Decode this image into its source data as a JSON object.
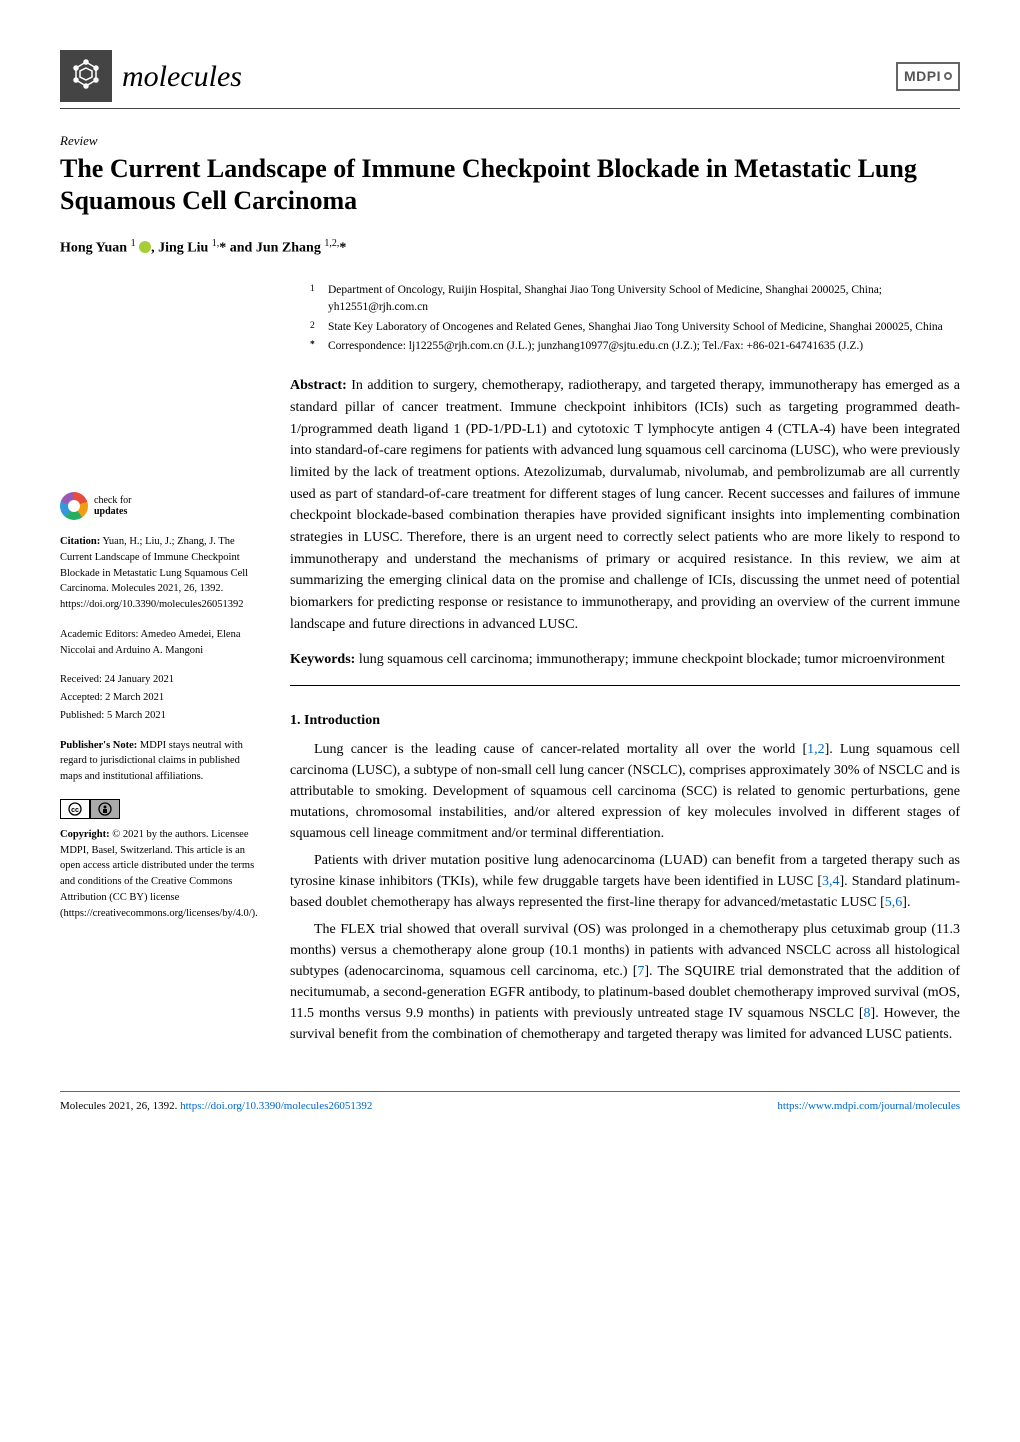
{
  "header": {
    "journal": "molecules",
    "publisher": "MDPI"
  },
  "article": {
    "type": "Review",
    "title": "The Current Landscape of Immune Checkpoint Blockade in Metastatic Lung Squamous Cell Carcinoma",
    "authors_html": "Hong Yuan <sup>1</sup> <span class=\"orcid\"></span>, Jing Liu <sup>1,</sup>* and Jun Zhang <sup>1,2,</sup>*"
  },
  "affiliations": {
    "a1_sup": "1",
    "a1": "Department of Oncology, Ruijin Hospital, Shanghai Jiao Tong University School of Medicine, Shanghai 200025, China; yh12551@rjh.com.cn",
    "a2_sup": "2",
    "a2": "State Key Laboratory of Oncogenes and Related Genes, Shanghai Jiao Tong University School of Medicine, Shanghai 200025, China",
    "corr_sup": "*",
    "corr": "Correspondence: lj12255@rjh.com.cn (J.L.); junzhang10977@sjtu.edu.cn (J.Z.); Tel./Fax: +86-021-64741635 (J.Z.)"
  },
  "abstract": {
    "label": "Abstract:",
    "text": " In addition to surgery, chemotherapy, radiotherapy, and targeted therapy, immunotherapy has emerged as a standard pillar of cancer treatment. Immune checkpoint inhibitors (ICIs) such as targeting programmed death-1/programmed death ligand 1 (PD-1/PD-L1) and cytotoxic T lymphocyte antigen 4 (CTLA-4) have been integrated into standard-of-care regimens for patients with advanced lung squamous cell carcinoma (LUSC), who were previously limited by the lack of treatment options. Atezolizumab, durvalumab, nivolumab, and pembrolizumab are all currently used as part of standard-of-care treatment for different stages of lung cancer. Recent successes and failures of immune checkpoint blockade-based combination therapies have provided significant insights into implementing combination strategies in LUSC. Therefore, there is an urgent need to correctly select patients who are more likely to respond to immunotherapy and understand the mechanisms of primary or acquired resistance. In this review, we aim at summarizing the emerging clinical data on the promise and challenge of ICIs, discussing the unmet need of potential biomarkers for predicting response or resistance to immunotherapy, and providing an overview of the current immune landscape and future directions in advanced LUSC."
  },
  "keywords": {
    "label": "Keywords:",
    "text": " lung squamous cell carcinoma; immunotherapy; immune checkpoint blockade; tumor microenvironment"
  },
  "sections": {
    "intro_heading": "1. Introduction",
    "p1": "Lung cancer is the leading cause of cancer-related mortality all over the world [1,2]. Lung squamous cell carcinoma (LUSC), a subtype of non-small cell lung cancer (NSCLC), comprises approximately 30% of NSCLC and is attributable to smoking. Development of squamous cell carcinoma (SCC) is related to genomic perturbations, gene mutations, chromosomal instabilities, and/or altered expression of key molecules involved in different stages of squamous cell lineage commitment and/or terminal differentiation.",
    "p2": "Patients with driver mutation positive lung adenocarcinoma (LUAD) can benefit from a targeted therapy such as tyrosine kinase inhibitors (TKIs), while few druggable targets have been identified in LUSC [3,4]. Standard platinum-based doublet chemotherapy has always represented the first-line therapy for advanced/metastatic LUSC [5,6].",
    "p3": "The FLEX trial showed that overall survival (OS) was prolonged in a chemotherapy plus cetuximab group (11.3 months) versus a chemotherapy alone group (10.1 months) in patients with advanced NSCLC across all histological subtypes (adenocarcinoma, squamous cell carcinoma, etc.) [7]. The SQUIRE trial demonstrated that the addition of necitumumab, a second-generation EGFR antibody, to platinum-based doublet chemotherapy improved survival (mOS, 11.5 months versus 9.9 months) in patients with previously untreated stage IV squamous NSCLC [8]. However, the survival benefit from the combination of chemotherapy and targeted therapy was limited for advanced LUSC patients."
  },
  "sidebar": {
    "check_l1": "check for",
    "check_l2": "updates",
    "citation_label": "Citation:",
    "citation": " Yuan, H.; Liu, J.; Zhang, J. The Current Landscape of Immune Checkpoint Blockade in Metastatic Lung Squamous Cell Carcinoma. Molecules 2021, 26, 1392. https://doi.org/10.3390/molecules26051392",
    "editors": "Academic Editors: Amedeo Amedei, Elena Niccolai and Arduino A. Mangoni",
    "received": "Received: 24 January 2021",
    "accepted": "Accepted: 2 March 2021",
    "published": "Published: 5 March 2021",
    "pubnote_label": "Publisher's Note:",
    "pubnote": " MDPI stays neutral with regard to jurisdictional claims in published maps and institutional affiliations.",
    "copyright_label": "Copyright:",
    "copyright": " © 2021 by the authors. Licensee MDPI, Basel, Switzerland. This article is an open access article distributed under the terms and conditions of the Creative Commons Attribution (CC BY) license (https://creativecommons.org/licenses/by/4.0/)."
  },
  "footer": {
    "left": "Molecules 2021, 26, 1392. https://doi.org/10.3390/molecules26051392",
    "right": "https://www.mdpi.com/journal/molecules"
  },
  "colors": {
    "link": "#0066cc",
    "orcid": "#a6ce39"
  }
}
